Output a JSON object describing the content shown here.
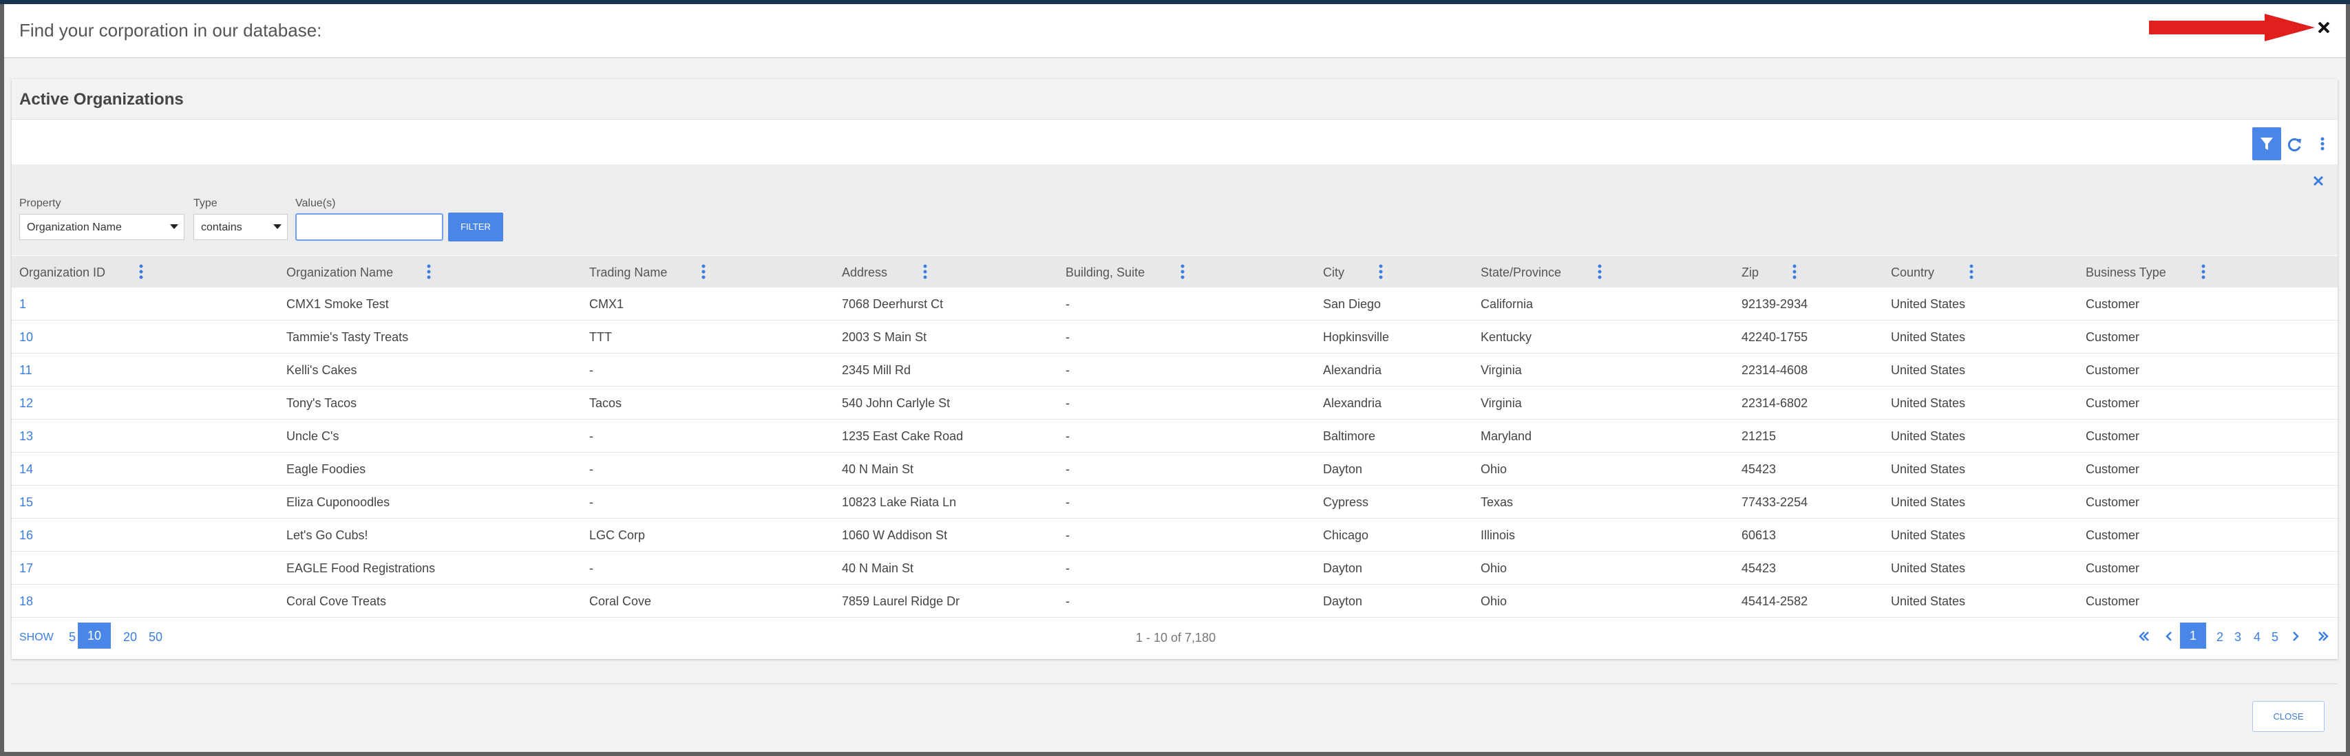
{
  "header": {
    "title": "Find your corporation in our database:"
  },
  "panel": {
    "title": "Active Organizations"
  },
  "filter": {
    "property_label": "Property",
    "type_label": "Type",
    "value_label": "Value(s)",
    "property_value": "Organization Name",
    "type_value": "contains",
    "button": "FILTER"
  },
  "table": {
    "columns": [
      "Organization ID",
      "Organization Name",
      "Trading Name",
      "Address",
      "Building, Suite",
      "City",
      "State/Province",
      "Zip",
      "Country",
      "Business Type"
    ],
    "rows": [
      [
        "1",
        "CMX1 Smoke Test",
        "CMX1",
        "7068 Deerhurst Ct",
        "-",
        "San Diego",
        "California",
        "92139-2934",
        "United States",
        "Customer"
      ],
      [
        "10",
        "Tammie's Tasty Treats",
        "TTT",
        "2003 S Main St",
        "-",
        "Hopkinsville",
        "Kentucky",
        "42240-1755",
        "United States",
        "Customer"
      ],
      [
        "11",
        "Kelli's Cakes",
        "-",
        "2345 Mill Rd",
        "-",
        "Alexandria",
        "Virginia",
        "22314-4608",
        "United States",
        "Customer"
      ],
      [
        "12",
        "Tony's Tacos",
        "Tacos",
        "540 John Carlyle St",
        "-",
        "Alexandria",
        "Virginia",
        "22314-6802",
        "United States",
        "Customer"
      ],
      [
        "13",
        "Uncle C's",
        "-",
        "1235 East Cake Road",
        "-",
        "Baltimore",
        "Maryland",
        "21215",
        "United States",
        "Customer"
      ],
      [
        "14",
        "Eagle Foodies",
        "-",
        "40 N Main St",
        "-",
        "Dayton",
        "Ohio",
        "45423",
        "United States",
        "Customer"
      ],
      [
        "15",
        "Eliza Cuponoodles",
        "-",
        "10823 Lake Riata Ln",
        "-",
        "Cypress",
        "Texas",
        "77433-2254",
        "United States",
        "Customer"
      ],
      [
        "16",
        "Let's Go Cubs!",
        "LGC Corp",
        "1060 W Addison St",
        "-",
        "Chicago",
        "Illinois",
        "60613",
        "United States",
        "Customer"
      ],
      [
        "17",
        "EAGLE Food Registrations",
        "-",
        "40 N Main St",
        "-",
        "Dayton",
        "Ohio",
        "45423",
        "United States",
        "Customer"
      ],
      [
        "18",
        "Coral Cove Treats",
        "Coral Cove",
        "7859 Laurel Ridge Dr",
        "-",
        "Dayton",
        "Ohio",
        "45414-2582",
        "United States",
        "Customer"
      ]
    ]
  },
  "footer": {
    "show_label": "SHOW",
    "page_sizes": [
      5,
      10,
      20,
      50
    ],
    "selected_page_size": 10,
    "range": "1 - 10 of 7,180",
    "pages": [
      1,
      2,
      3,
      4,
      5
    ],
    "current_page": 1
  },
  "close_button": "CLOSE"
}
